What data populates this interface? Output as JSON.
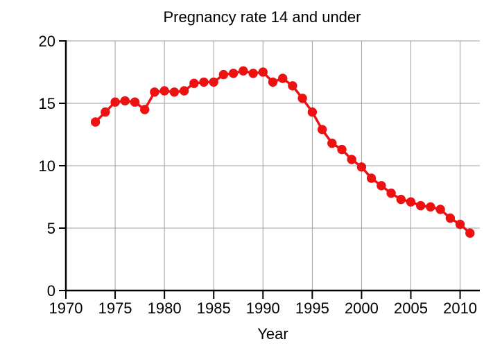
{
  "page": {
    "background": "#ffffff"
  },
  "chart_data": {
    "type": "line",
    "title": "Pregnancy rate 14 and under",
    "xlabel": "Year",
    "ylabel": "",
    "xlim": [
      1970,
      2012
    ],
    "ylim": [
      0,
      20
    ],
    "x_ticks": [
      1970,
      1975,
      1980,
      1985,
      1990,
      1995,
      2000,
      2005,
      2010
    ],
    "y_ticks": [
      0,
      5,
      10,
      15,
      20
    ],
    "grid": true,
    "legend": "none",
    "marker": "filled-circle",
    "line_color": "#ee1111",
    "grid_color": "#9e9e9e",
    "axis_color": "#000000",
    "x": [
      1973,
      1974,
      1975,
      1976,
      1977,
      1978,
      1979,
      1980,
      1981,
      1982,
      1983,
      1984,
      1985,
      1986,
      1987,
      1988,
      1989,
      1990,
      1991,
      1992,
      1993,
      1994,
      1995,
      1996,
      1997,
      1998,
      1999,
      2000,
      2001,
      2002,
      2003,
      2004,
      2005,
      2006,
      2007,
      2008,
      2009,
      2010,
      2011
    ],
    "y": [
      13.5,
      14.3,
      15.1,
      15.2,
      15.1,
      14.5,
      15.9,
      16.0,
      15.9,
      16.0,
      16.6,
      16.7,
      16.7,
      17.3,
      17.4,
      17.6,
      17.4,
      17.5,
      16.7,
      17.0,
      16.4,
      15.4,
      14.3,
      12.9,
      11.8,
      11.3,
      10.5,
      9.9,
      9.0,
      8.4,
      7.8,
      7.3,
      7.1,
      6.8,
      6.7,
      6.5,
      5.8,
      5.3,
      4.6
    ]
  }
}
